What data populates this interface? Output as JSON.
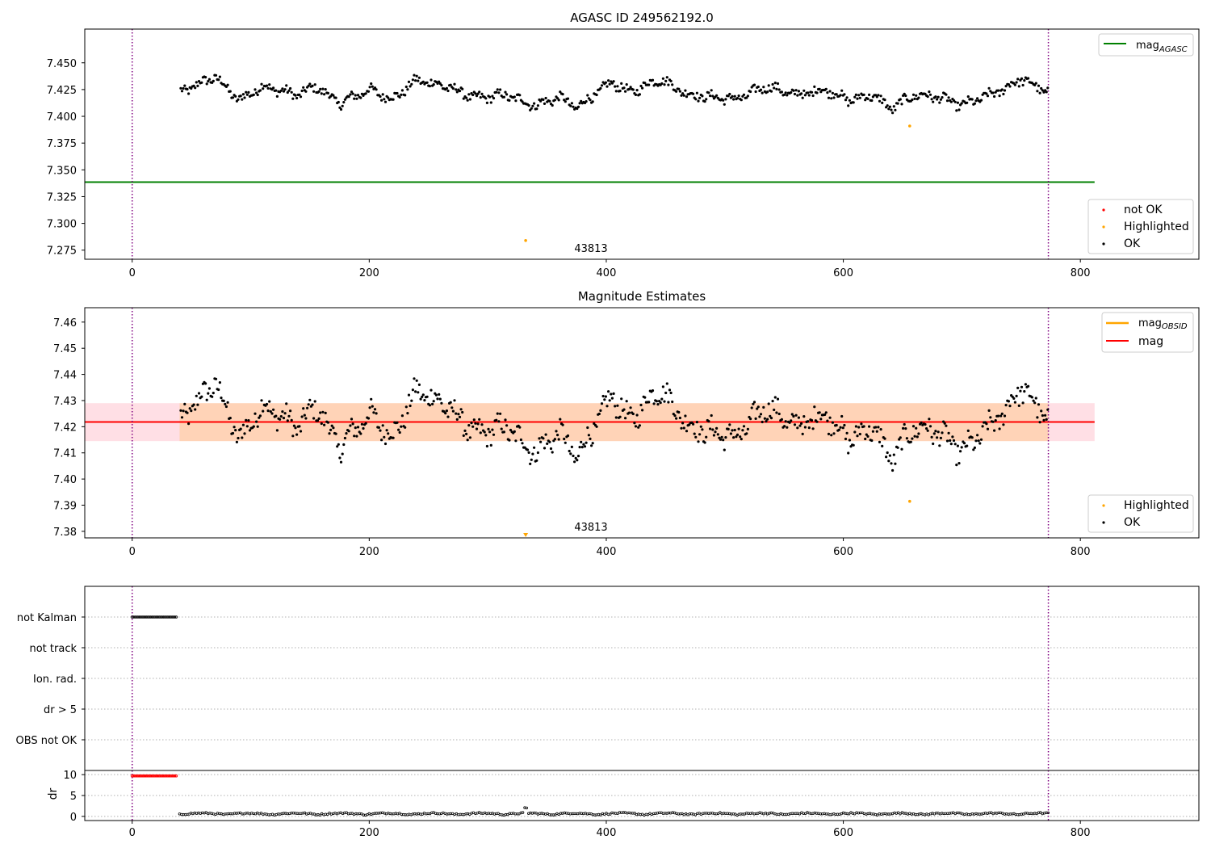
{
  "chart_data": [
    {
      "type": "scatter",
      "title": "AGASC ID 249562192.0",
      "xlabel": "",
      "ylabel": "",
      "xlim": [
        -40,
        900
      ],
      "ylim": [
        7.2665,
        7.4815
      ],
      "yticks": [
        7.275,
        7.3,
        7.325,
        7.35,
        7.375,
        7.4,
        7.425,
        7.45
      ],
      "ytick_labels": [
        "7.275",
        "7.300",
        "7.325",
        "7.350",
        "7.375",
        "7.400",
        "7.425",
        "7.450"
      ],
      "xticks": [
        0,
        200,
        400,
        600,
        800
      ],
      "xtick_labels": [
        "0",
        "200",
        "400",
        "600",
        "800"
      ],
      "grid": false,
      "vlines": [
        0,
        773
      ],
      "obsid_label": {
        "x": 385,
        "y": 7.283,
        "text": "43813"
      },
      "lines": [
        {
          "name": "mag_AGASC",
          "y": 7.3385,
          "x_range": [
            -40,
            812
          ],
          "color": "#008000"
        }
      ],
      "series": [
        {
          "name": "not OK",
          "color": "#ff0000",
          "points": []
        },
        {
          "name": "Highlighted",
          "color": "#ffa500",
          "points": [
            [
              332,
              7.284
            ],
            [
              656,
              7.391
            ]
          ]
        },
        {
          "name": "OK",
          "color": "#000000",
          "anchors": [
            [
              40,
              7.422
            ],
            [
              70,
              7.437
            ],
            [
              90,
              7.415
            ],
            [
              110,
              7.428
            ],
            [
              140,
              7.42
            ],
            [
              155,
              7.428
            ],
            [
              175,
              7.412
            ],
            [
              200,
              7.425
            ],
            [
              220,
              7.416
            ],
            [
              240,
              7.434
            ],
            [
              265,
              7.428
            ],
            [
              290,
              7.417
            ],
            [
              315,
              7.42
            ],
            [
              340,
              7.41
            ],
            [
              360,
              7.418
            ],
            [
              375,
              7.408
            ],
            [
              405,
              7.432
            ],
            [
              420,
              7.422
            ],
            [
              445,
              7.435
            ],
            [
              470,
              7.42
            ],
            [
              510,
              7.416
            ],
            [
              535,
              7.428
            ],
            [
              560,
              7.42
            ],
            [
              585,
              7.425
            ],
            [
              605,
              7.415
            ],
            [
              625,
              7.42
            ],
            [
              640,
              7.407
            ],
            [
              660,
              7.42
            ],
            [
              680,
              7.418
            ],
            [
              700,
              7.41
            ],
            [
              735,
              7.425
            ],
            [
              750,
              7.435
            ],
            [
              773,
              7.422
            ]
          ]
        }
      ],
      "legends": [
        {
          "placement": "top-right",
          "entries": [
            {
              "label": "mag",
              "sub": "AGASC",
              "kind": "line",
              "color": "#008000"
            }
          ]
        },
        {
          "placement": "bottom-right",
          "entries": [
            {
              "label": "not OK",
              "kind": "dot",
              "color": "#ff0000"
            },
            {
              "label": "Highlighted",
              "kind": "dot",
              "color": "#ffa500"
            },
            {
              "label": "OK",
              "kind": "dot",
              "color": "#000000"
            }
          ]
        }
      ]
    },
    {
      "type": "scatter",
      "title": "Magnitude Estimates",
      "xlabel": "",
      "ylabel": "",
      "xlim": [
        -40,
        900
      ],
      "ylim": [
        7.3775,
        7.4655
      ],
      "yticks": [
        7.38,
        7.39,
        7.4,
        7.41,
        7.42,
        7.43,
        7.44,
        7.45,
        7.46
      ],
      "ytick_labels": [
        "7.38",
        "7.39",
        "7.40",
        "7.41",
        "7.42",
        "7.43",
        "7.44",
        "7.45",
        "7.46"
      ],
      "xticks": [
        0,
        200,
        400,
        600,
        800
      ],
      "xtick_labels": [
        "0",
        "200",
        "400",
        "600",
        "800"
      ],
      "grid": false,
      "vlines": [
        0,
        773
      ],
      "obsid_label": {
        "x": 385,
        "y": 7.3805,
        "text": "43813"
      },
      "bands": [
        {
          "y": [
            7.4145,
            7.429
          ],
          "x_range": [
            -40,
            812
          ],
          "color": "#ffc0cb",
          "opacity": 0.5
        },
        {
          "y": [
            7.4145,
            7.429
          ],
          "x_range": [
            40,
            773
          ],
          "color": "#ffa500",
          "opacity": 0.2
        }
      ],
      "lines": [
        {
          "name": "mag_OBSID",
          "y": 7.4218,
          "x_range": [
            40,
            773
          ],
          "color": "#ffa500"
        },
        {
          "name": "mag",
          "y": 7.4218,
          "x_range": [
            -40,
            812
          ],
          "color": "#ff0000"
        }
      ],
      "series": [
        {
          "name": "Highlighted",
          "color": "#ffa500",
          "points": [
            [
              656,
              7.3915
            ],
            [
              332,
              7.3785
            ]
          ]
        },
        {
          "name": "OK",
          "color": "#000000",
          "same_as": "OK series of the upper panel"
        }
      ],
      "legends": [
        {
          "placement": "top-right",
          "entries": [
            {
              "label": "mag",
              "sub": "OBSID",
              "kind": "line",
              "color": "#ffa500"
            },
            {
              "label": "mag",
              "kind": "line",
              "color": "#ff0000"
            }
          ]
        },
        {
          "placement": "bottom-right",
          "entries": [
            {
              "label": "Highlighted",
              "kind": "dot",
              "color": "#ffa500"
            },
            {
              "label": "OK",
              "kind": "dot",
              "color": "#000000"
            }
          ]
        }
      ]
    },
    {
      "type": "scatter",
      "title": "",
      "xlim": [
        -40,
        900
      ],
      "categories": [
        "not Kalman",
        "not track",
        "Ion. rad.",
        "dr > 5",
        "OBS not OK"
      ],
      "grid": true,
      "vlines": [
        0,
        773
      ],
      "series": [
        {
          "name": "not Kalman",
          "x_range": [
            0,
            38
          ],
          "color": "#000000"
        },
        {
          "name": "not track",
          "x_range": []
        },
        {
          "name": "Ion. rad.",
          "x_range": []
        },
        {
          "name": "dr > 5",
          "x_range": []
        },
        {
          "name": "OBS not OK",
          "x_range": []
        }
      ]
    },
    {
      "type": "scatter",
      "title": "",
      "xlabel": "",
      "ylabel": "dr",
      "xlim": [
        -40,
        900
      ],
      "ylim": [
        -1,
        11
      ],
      "yticks": [
        0,
        5,
        10
      ],
      "ytick_labels": [
        "0",
        "5",
        "10"
      ],
      "xticks": [
        0,
        200,
        400,
        600,
        800
      ],
      "xtick_labels": [
        "0",
        "200",
        "400",
        "600",
        "800"
      ],
      "grid": true,
      "vlines": [
        0,
        773
      ],
      "series": [
        {
          "name": "dr (no data, clipped)",
          "color": "#ff0000",
          "x_range": [
            0,
            38
          ],
          "y": 9.7
        },
        {
          "name": "dr",
          "color": "#000000",
          "x_range": [
            40,
            773
          ],
          "y_approx": [
            0.1,
            1.0
          ]
        }
      ]
    }
  ]
}
